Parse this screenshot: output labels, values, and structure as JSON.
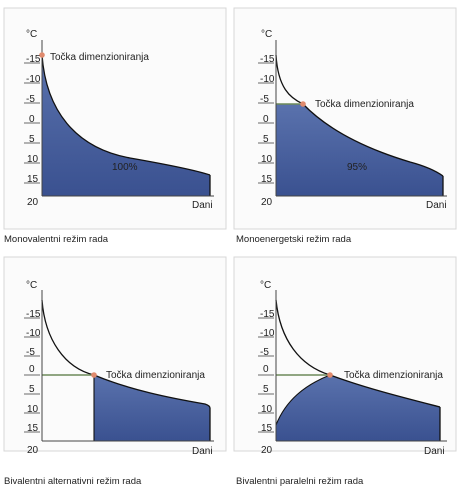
{
  "panels": [
    {
      "unit": "°C",
      "ticks": [
        "-15",
        "-10",
        "-5",
        "0",
        "5",
        "10",
        "15",
        "20"
      ],
      "point_label": "Točka dimenzioniranja",
      "x_axis_label": "Dani",
      "area_label": "100%",
      "caption": "Monovalentni režim rada"
    },
    {
      "unit": "°C",
      "ticks": [
        "-15",
        "-10",
        "-5",
        "0",
        "5",
        "10",
        "15",
        "20"
      ],
      "point_label": "Točka dimenzioniranja",
      "x_axis_label": "Dani",
      "area_label": "95%",
      "caption": "Monoenergetski režim rada"
    },
    {
      "unit": "°C",
      "ticks": [
        "-15",
        "-10",
        "-5",
        "0",
        "5",
        "10",
        "15",
        "20"
      ],
      "point_label": "Točka dimenzioniranja",
      "x_axis_label": "Dani",
      "area_label": "",
      "caption": "Bivalentni alternativni režim rada"
    },
    {
      "unit": "°C",
      "ticks": [
        "-15",
        "-10",
        "-5",
        "0",
        "5",
        "10",
        "15",
        "20"
      ],
      "point_label": "Točka dimenzioniranja",
      "x_axis_label": "Dani",
      "area_label": "",
      "caption": "Bivalentni paralelni režim rada"
    }
  ],
  "colors": {
    "fill": "#3f5a97",
    "fill_light": "#6e86bd",
    "curve": "#111111",
    "point": "#e08a6d",
    "limit_line": "#6c8a5a",
    "axis": "#444444",
    "frame": "#d7d7d7",
    "text": "#222222"
  }
}
